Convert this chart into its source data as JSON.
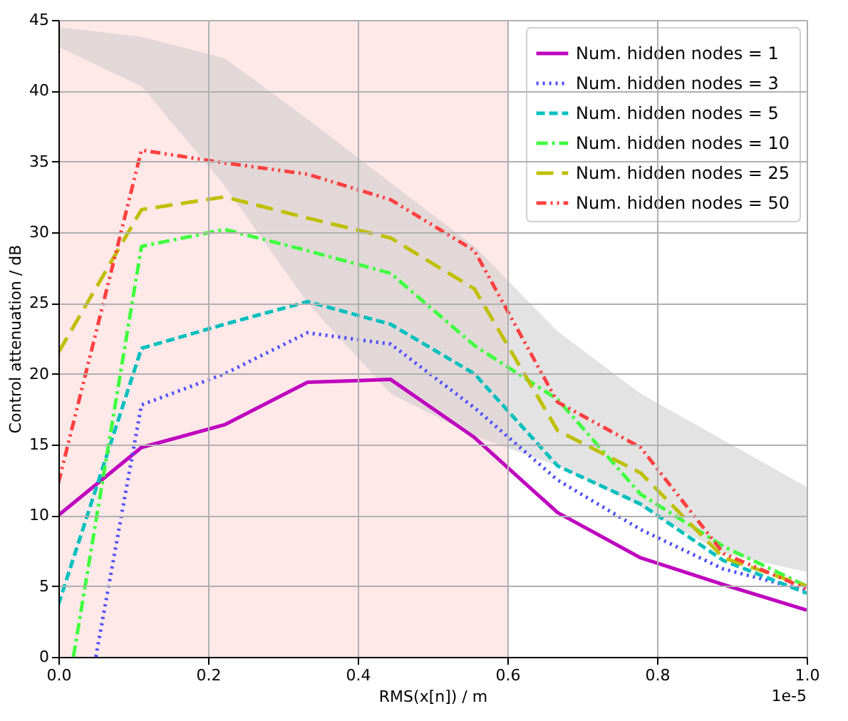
{
  "chart_data": {
    "type": "line",
    "xlabel": "RMS(x[n]) / m",
    "ylabel": "Control attenuation / dB",
    "x": [
      0,
      0.111,
      0.222,
      0.333,
      0.444,
      0.556,
      0.667,
      0.778,
      0.889,
      1.0
    ],
    "series": [
      {
        "name": "Num. hidden nodes = 1",
        "color": "#bf00bf",
        "line_style": "solid",
        "values": [
          10.0,
          14.8,
          16.4,
          19.4,
          19.6,
          15.5,
          10.2,
          7.0,
          5.1,
          3.3
        ]
      },
      {
        "name": "Num. hidden nodes = 3",
        "color": "#4d4dff",
        "line_style": "dotted",
        "x": [
          0.05,
          0.111,
          0.222,
          0.333,
          0.444,
          0.556,
          0.667,
          0.778,
          0.889,
          1.0
        ],
        "values": [
          0,
          17.8,
          20.0,
          22.9,
          22.1,
          17.6,
          12.5,
          9.0,
          6.2,
          4.7
        ]
      },
      {
        "name": "Num. hidden nodes = 5",
        "color": "#00bfbf",
        "line_style": "dashed",
        "values": [
          3.7,
          21.8,
          23.5,
          25.1,
          23.5,
          20.0,
          13.5,
          10.8,
          6.8,
          4.5
        ]
      },
      {
        "name": "Num. hidden nodes = 10",
        "color": "#40ff40",
        "line_style": "dashdot",
        "x": [
          0.02,
          0.111,
          0.222,
          0.333,
          0.444,
          0.556,
          0.667,
          0.778,
          0.889,
          1.0
        ],
        "values": [
          0,
          29.0,
          30.2,
          28.7,
          27.1,
          22.0,
          18.2,
          11.5,
          7.8,
          5.0
        ]
      },
      {
        "name": "Num. hidden nodes = 25",
        "color": "#bfbf00",
        "line_style": "longdash",
        "values": [
          21.5,
          31.6,
          32.5,
          31.0,
          29.6,
          26.0,
          16.0,
          13.0,
          7.0,
          5.0
        ]
      },
      {
        "name": "Num. hidden nodes = 50",
        "color": "#ff4040",
        "line_style": "dashdotdot",
        "values": [
          12.3,
          35.8,
          34.9,
          34.1,
          32.3,
          28.7,
          18.0,
          14.8,
          7.3,
          4.8
        ]
      },
      {
        "type": "area",
        "color": "#c8c8c8",
        "values": [
          null,
          null,
          null,
          null,
          null,
          null,
          null,
          null,
          null,
          null
        ],
        "upper": [
          44.5,
          43.8,
          42.3,
          38.0,
          33.5,
          29.0,
          23.0,
          18.6,
          15.3,
          12.0
        ],
        "lower": [
          43.1,
          40.3,
          33.3,
          25.0,
          18.6,
          15.6,
          13.5,
          10.6,
          7.3,
          6.0
        ]
      }
    ],
    "bands": [
      {
        "axis": "x",
        "from": 0,
        "to": 0.6,
        "color": "#ffe8e8"
      }
    ],
    "xlim": [
      0,
      1.0
    ],
    "xticks": [
      {
        "value": 0,
        "label": "0.0"
      },
      {
        "value": 0.2,
        "label": "0.2"
      },
      {
        "value": 0.4,
        "label": "0.4"
      },
      {
        "value": 0.6,
        "label": "0.6"
      },
      {
        "value": 0.8,
        "label": "0.8"
      },
      {
        "value": 1.0,
        "label": "1.0"
      }
    ],
    "ylim": [
      0,
      45
    ],
    "yticks": [
      0,
      5,
      10,
      15,
      20,
      25,
      30,
      35,
      40,
      45
    ],
    "annotations": [
      "1e-5"
    ],
    "grid": true,
    "legend": "top right"
  }
}
